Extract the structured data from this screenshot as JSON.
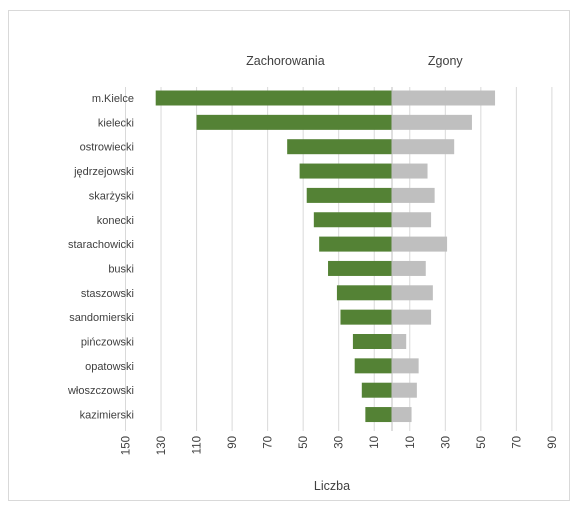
{
  "chart_data": {
    "type": "bar",
    "orientation": "horizontal",
    "layout": "diverging",
    "categories": [
      "m.Kielce",
      "kielecki",
      "ostrowiecki",
      "jędrzejowski",
      "skarżyski",
      "konecki",
      "starachowicki",
      "buski",
      "staszowski",
      "sandomierski",
      "pińczowski",
      "opatowski",
      "włoszczowski",
      "kazimierski"
    ],
    "series": [
      {
        "name": "Zachorowania",
        "color": "#548235",
        "side": "left",
        "values": [
          133,
          110,
          59,
          52,
          48,
          44,
          41,
          36,
          31,
          29,
          22,
          21,
          17,
          15
        ]
      },
      {
        "name": "Zgony",
        "color": "#bfbfbf",
        "side": "right",
        "values": [
          58,
          45,
          35,
          20,
          24,
          22,
          31,
          19,
          23,
          22,
          8,
          15,
          14,
          11
        ]
      }
    ],
    "xlabel": "Liczba",
    "left_ticks": [
      "150",
      "130",
      "110",
      "90",
      "70",
      "50",
      "30",
      "10"
    ],
    "right_ticks": [
      "10",
      "30",
      "50",
      "70",
      "90"
    ],
    "left_tick_values": [
      150,
      130,
      110,
      90,
      70,
      50,
      30,
      10
    ],
    "right_tick_values": [
      10,
      30,
      50,
      70,
      90
    ],
    "left_range": [
      0,
      150
    ],
    "right_range": [
      0,
      90
    ],
    "grid": true,
    "legend": "none"
  }
}
